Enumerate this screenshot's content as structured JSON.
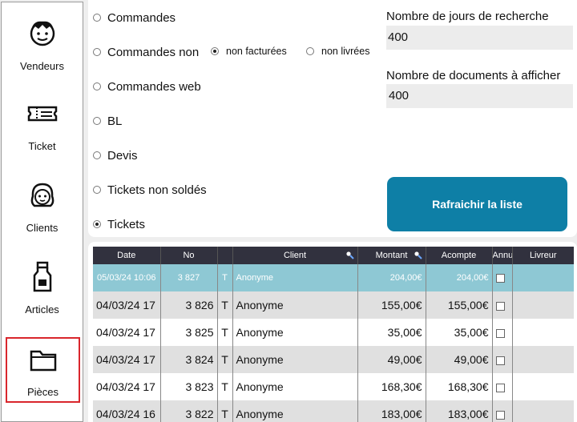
{
  "sidebar": {
    "items": [
      {
        "label": "Vendeurs",
        "icon": "person-face-icon"
      },
      {
        "label": "Ticket",
        "icon": "ticket-icon"
      },
      {
        "label": "Clients",
        "icon": "client-face-icon"
      },
      {
        "label": "Articles",
        "icon": "bottle-icon"
      },
      {
        "label": "Pièces",
        "icon": "folder-icon"
      }
    ],
    "active_index": 4,
    "active_color": "#d9262c"
  },
  "filters": {
    "options": [
      {
        "label": "Commandes",
        "checked": false
      },
      {
        "label": "Commandes non",
        "checked": false
      },
      {
        "label": "Commandes web",
        "checked": false
      },
      {
        "label": "BL",
        "checked": false
      },
      {
        "label": "Devis",
        "checked": false
      },
      {
        "label": "Tickets non soldés",
        "checked": false
      },
      {
        "label": "Tickets",
        "checked": true
      }
    ],
    "sub_options": [
      {
        "label": "non facturées",
        "checked": true
      },
      {
        "label": "non livrées",
        "checked": false
      }
    ]
  },
  "search_days": {
    "label": "Nombre de jours de recherche",
    "value": "400"
  },
  "doc_count": {
    "label": "Nombre de documents à afficher",
    "value": "400"
  },
  "refresh_button": {
    "label": "Rafraichir la liste",
    "color": "#0e7fa6"
  },
  "table": {
    "columns": [
      "Date",
      "No",
      "",
      "Client",
      "Montant",
      "Acompte",
      "Annu",
      "Livreur"
    ],
    "rows": [
      {
        "date": "05/03/24 10:06",
        "no": "3 827",
        "type": "T",
        "client": "Anonyme",
        "montant": "204,00€",
        "acompte": "204,00€"
      },
      {
        "date": "04/03/24 17",
        "no": "3 826",
        "type": "T",
        "client": "Anonyme",
        "montant": "155,00€",
        "acompte": "155,00€"
      },
      {
        "date": "04/03/24 17",
        "no": "3 825",
        "type": "T",
        "client": "Anonyme",
        "montant": "35,00€",
        "acompte": "35,00€"
      },
      {
        "date": "04/03/24 17",
        "no": "3 824",
        "type": "T",
        "client": "Anonyme",
        "montant": "49,00€",
        "acompte": "49,00€"
      },
      {
        "date": "04/03/24 17",
        "no": "3 823",
        "type": "T",
        "client": "Anonyme",
        "montant": "168,30€",
        "acompte": "168,30€"
      },
      {
        "date": "04/03/24 16",
        "no": "3 822",
        "type": "T",
        "client": "Anonyme",
        "montant": "183,00€",
        "acompte": "183,00€"
      }
    ],
    "header_color": "#31313e",
    "selected_color": "#8ec8d4"
  }
}
